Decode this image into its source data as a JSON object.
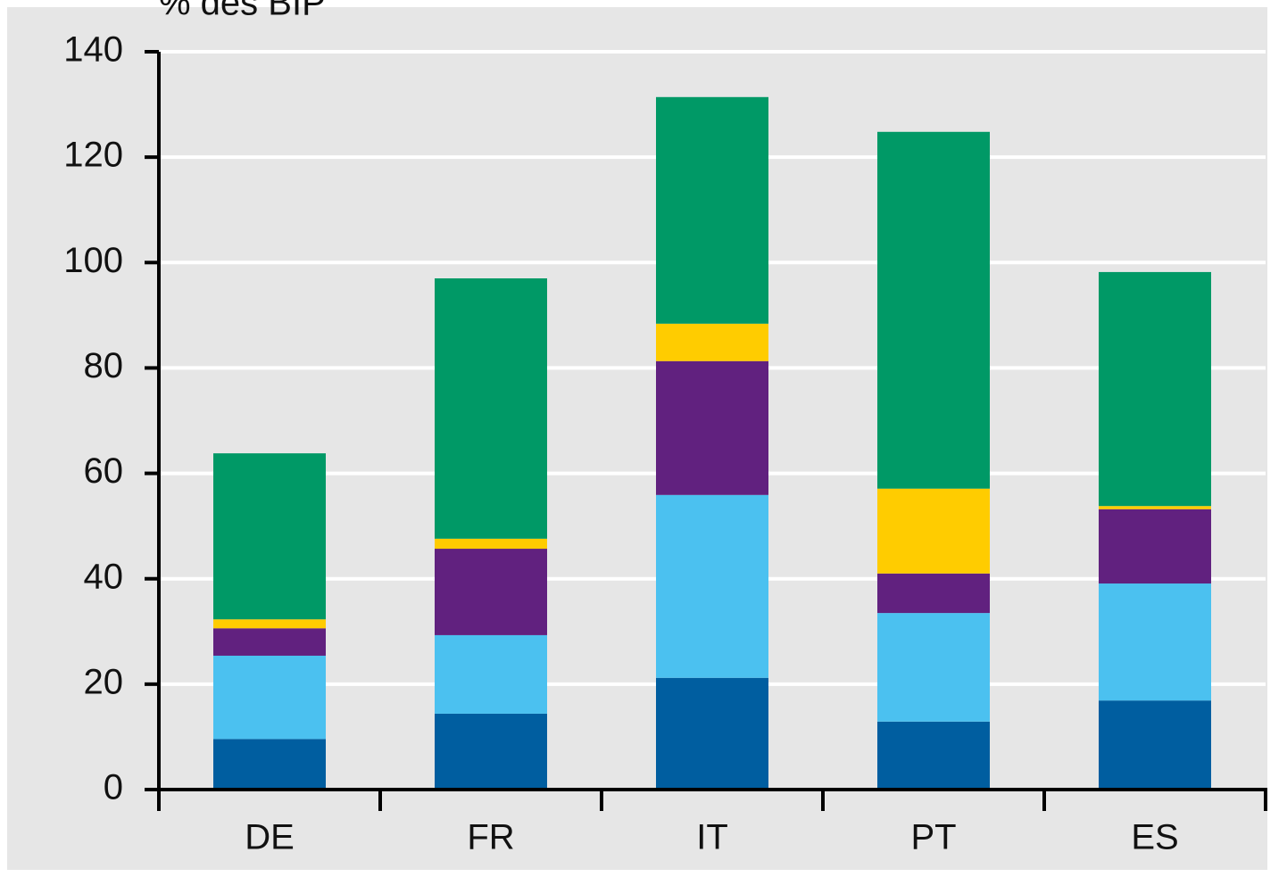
{
  "chart_data": {
    "type": "stacked_bar",
    "y_label": "% des BIP",
    "categories": [
      "DE",
      "FR",
      "IT",
      "PT",
      "ES"
    ],
    "series": [
      {
        "color": "#005ea0",
        "values": [
          9.6,
          14.4,
          21.2,
          12.9,
          16.9
        ]
      },
      {
        "color": "#4bc1f0",
        "values": [
          15.8,
          14.9,
          34.7,
          20.6,
          22.2
        ]
      },
      {
        "color": "#61217f",
        "values": [
          5.2,
          16.4,
          25.4,
          7.5,
          14.1
        ]
      },
      {
        "color": "#ffcc00",
        "values": [
          1.7,
          1.9,
          7.1,
          16.1,
          0.6
        ]
      },
      {
        "color": "#009966",
        "values": [
          31.5,
          49.4,
          43.0,
          67.7,
          44.4
        ]
      }
    ],
    "ylim": [
      0,
      140
    ],
    "yticks": [
      0,
      20,
      40,
      60,
      80,
      100,
      120,
      140
    ],
    "grid": true
  }
}
